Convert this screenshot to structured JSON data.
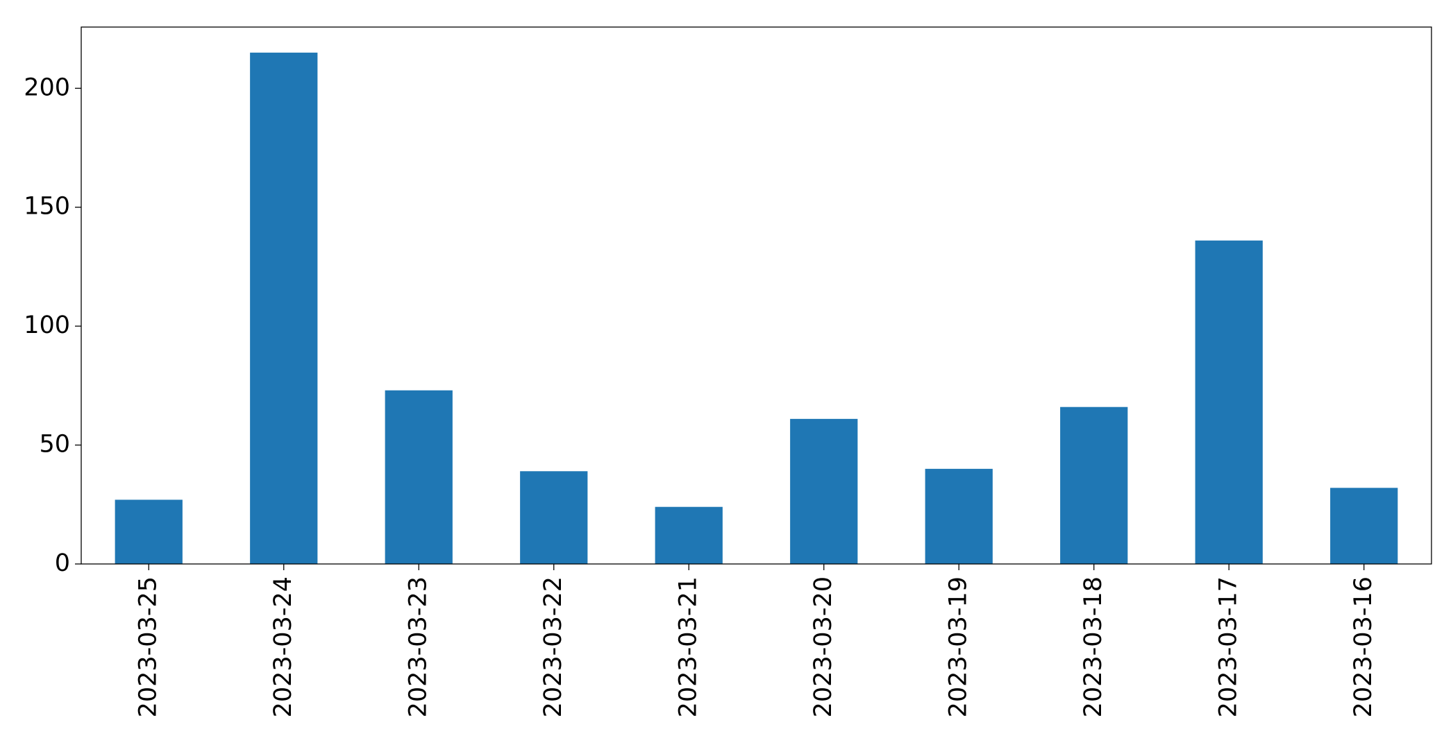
{
  "chart_data": {
    "type": "bar",
    "categories": [
      "2023-03-25",
      "2023-03-24",
      "2023-03-23",
      "2023-03-22",
      "2023-03-21",
      "2023-03-20",
      "2023-03-19",
      "2023-03-18",
      "2023-03-17",
      "2023-03-16"
    ],
    "values": [
      27,
      215,
      73,
      39,
      24,
      61,
      40,
      66,
      136,
      32
    ],
    "color": "#1f77b4",
    "ylim": [
      0,
      225.75
    ],
    "yticks": [
      0,
      50,
      100,
      150,
      200
    ],
    "grid": false
  }
}
